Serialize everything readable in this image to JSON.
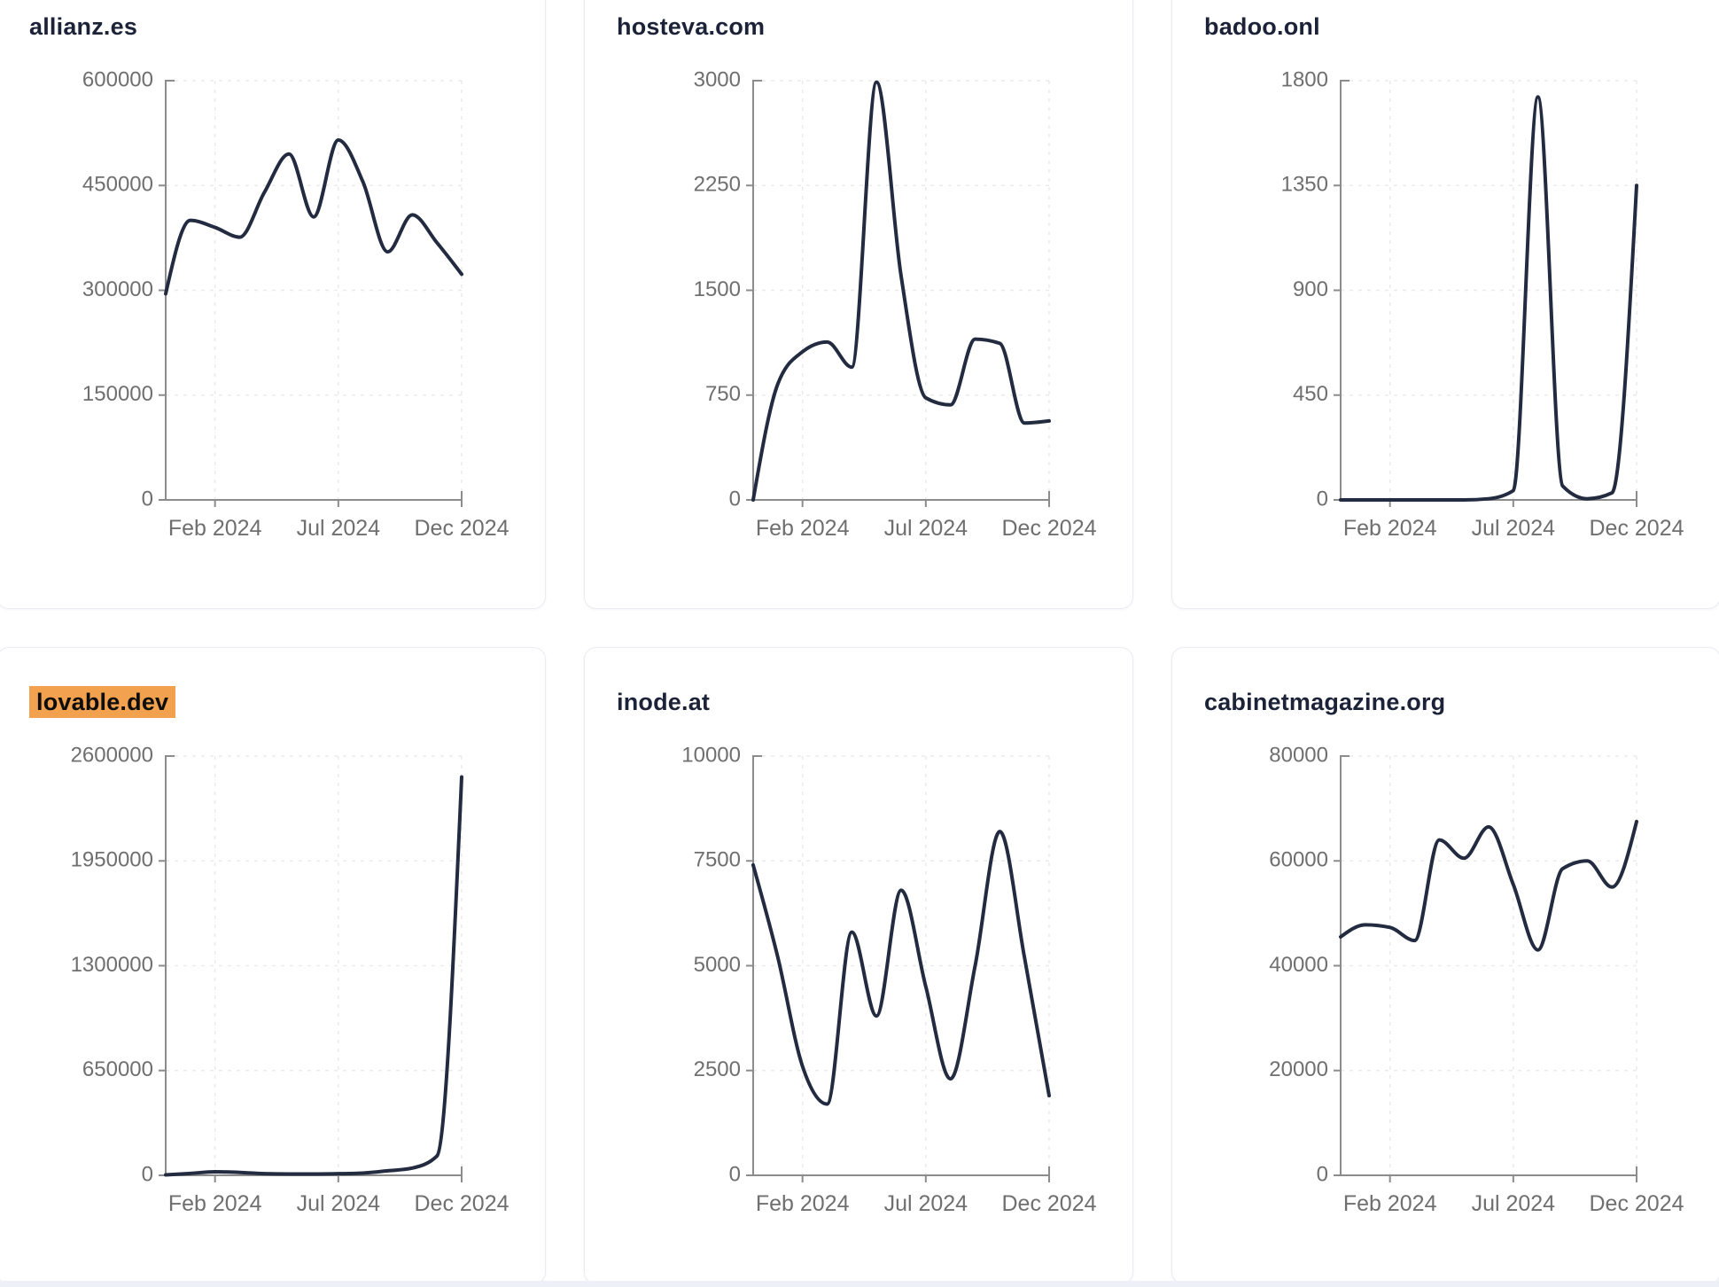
{
  "colors": {
    "line": "#222b40",
    "title": "#1c2338",
    "title_highlight": "#f2a14e",
    "axis": "#8c8c8c",
    "tick_label": "#6f6f6f",
    "grid": "#ebebeb",
    "card_border": "#e9ecf3",
    "bottom_strip": "#edf1f7"
  },
  "chart_data": [
    {
      "type": "line",
      "title": "allianz.es",
      "title_highlighted": false,
      "x_ticks": [
        "Feb 2024",
        "Jul 2024",
        "Dec 2024"
      ],
      "x": [
        "Dec 2023",
        "Jan 2024",
        "Feb 2024",
        "Mar 2024",
        "Apr 2024",
        "May 2024",
        "Jun 2024",
        "Jul 2024",
        "Aug 2024",
        "Sep 2024",
        "Oct 2024",
        "Nov 2024",
        "Dec 2024"
      ],
      "values": [
        295000,
        400000,
        390000,
        376000,
        440000,
        495000,
        405000,
        515000,
        455000,
        355000,
        408000,
        368000,
        323000
      ],
      "ylim": [
        0,
        600000
      ],
      "yticks": [
        0,
        150000,
        300000,
        450000,
        600000
      ],
      "grid": true,
      "legend": false
    },
    {
      "type": "line",
      "title": "hosteva.com",
      "title_highlighted": false,
      "x_ticks": [
        "Feb 2024",
        "Jul 2024",
        "Dec 2024"
      ],
      "x": [
        "Dec 2023",
        "Jan 2024",
        "Feb 2024",
        "Mar 2024",
        "Apr 2024",
        "May 2024",
        "Jun 2024",
        "Jul 2024",
        "Aug 2024",
        "Sep 2024",
        "Oct 2024",
        "Nov 2024",
        "Dec 2024"
      ],
      "values": [
        0,
        830,
        1060,
        1130,
        950,
        2990,
        1600,
        730,
        680,
        1150,
        1120,
        550,
        565
      ],
      "ylim": [
        0,
        3000
      ],
      "yticks": [
        0,
        750,
        1500,
        2250,
        3000
      ],
      "grid": true,
      "legend": false
    },
    {
      "type": "line",
      "title": "badoo.onl",
      "title_highlighted": false,
      "x_ticks": [
        "Feb 2024",
        "Jul 2024",
        "Dec 2024"
      ],
      "x": [
        "Dec 2023",
        "Jan 2024",
        "Feb 2024",
        "Mar 2024",
        "Apr 2024",
        "May 2024",
        "Jun 2024",
        "Jul 2024",
        "Aug 2024",
        "Sep 2024",
        "Oct 2024",
        "Nov 2024",
        "Dec 2024"
      ],
      "values": [
        0,
        0,
        0,
        0,
        0,
        0,
        5,
        40,
        1730,
        60,
        5,
        30,
        1350
      ],
      "ylim": [
        0,
        1800
      ],
      "yticks": [
        0,
        450,
        900,
        1350,
        1800
      ],
      "grid": true,
      "legend": false
    },
    {
      "type": "line",
      "title": "lovable.dev",
      "title_highlighted": true,
      "x_ticks": [
        "Feb 2024",
        "Jul 2024",
        "Dec 2024"
      ],
      "x": [
        "Dec 2023",
        "Jan 2024",
        "Feb 2024",
        "Mar 2024",
        "Apr 2024",
        "May 2024",
        "Jun 2024",
        "Jul 2024",
        "Aug 2024",
        "Sep 2024",
        "Oct 2024",
        "Nov 2024",
        "Dec 2024"
      ],
      "values": [
        3000,
        12000,
        22000,
        18000,
        10000,
        8000,
        8000,
        10000,
        14000,
        28000,
        45000,
        120000,
        2470000
      ],
      "ylim": [
        0,
        2600000
      ],
      "yticks": [
        0,
        650000,
        1300000,
        1950000,
        2600000
      ],
      "grid": true,
      "legend": false
    },
    {
      "type": "line",
      "title": "inode.at",
      "title_highlighted": false,
      "x_ticks": [
        "Feb 2024",
        "Jul 2024",
        "Dec 2024"
      ],
      "x": [
        "Dec 2023",
        "Jan 2024",
        "Feb 2024",
        "Mar 2024",
        "Apr 2024",
        "May 2024",
        "Jun 2024",
        "Jul 2024",
        "Aug 2024",
        "Sep 2024",
        "Oct 2024",
        "Nov 2024",
        "Dec 2024"
      ],
      "values": [
        7400,
        5200,
        2600,
        1700,
        5800,
        3800,
        6800,
        4500,
        2300,
        5000,
        8200,
        5200,
        1900
      ],
      "ylim": [
        0,
        10000
      ],
      "yticks": [
        0,
        2500,
        5000,
        7500,
        10000
      ],
      "grid": true,
      "legend": false
    },
    {
      "type": "line",
      "title": "cabinetmagazine.org",
      "title_highlighted": false,
      "x_ticks": [
        "Feb 2024",
        "Jul 2024",
        "Dec 2024"
      ],
      "x": [
        "Dec 2023",
        "Jan 2024",
        "Feb 2024",
        "Mar 2024",
        "Apr 2024",
        "May 2024",
        "Jun 2024",
        "Jul 2024",
        "Aug 2024",
        "Sep 2024",
        "Oct 2024",
        "Nov 2024",
        "Dec 2024"
      ],
      "values": [
        45500,
        47800,
        47300,
        44800,
        64000,
        60500,
        66500,
        55500,
        43000,
        58500,
        60000,
        55000,
        67500
      ],
      "ylim": [
        0,
        80000
      ],
      "yticks": [
        0,
        20000,
        40000,
        60000,
        80000
      ],
      "grid": true,
      "legend": false
    }
  ]
}
